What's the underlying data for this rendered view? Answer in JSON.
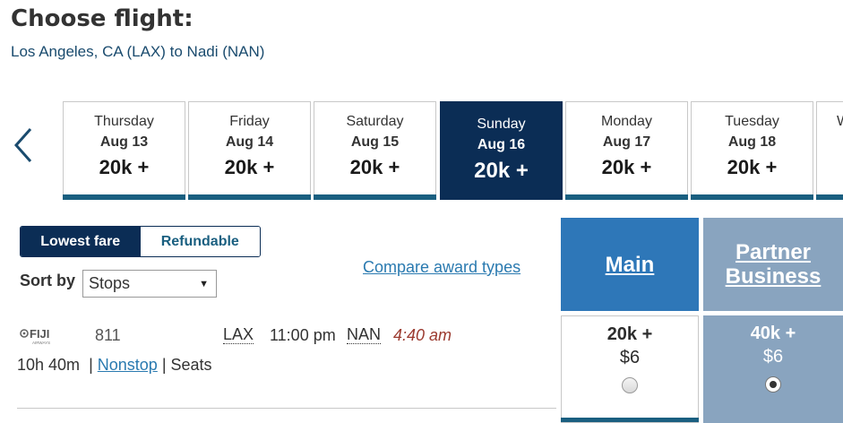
{
  "page": {
    "title": "Choose flight:",
    "route": "Los Angeles, CA (LAX) to Nadi (NAN)"
  },
  "date_strip": {
    "selected_index": 3,
    "days": [
      {
        "day": "Thursday",
        "date": "Aug 13",
        "price": "20k +"
      },
      {
        "day": "Friday",
        "date": "Aug 14",
        "price": "20k +"
      },
      {
        "day": "Saturday",
        "date": "Aug 15",
        "price": "20k +"
      },
      {
        "day": "Sunday",
        "date": "Aug 16",
        "price": "20k +"
      },
      {
        "day": "Monday",
        "date": "Aug 17",
        "price": "20k +"
      },
      {
        "day": "Tuesday",
        "date": "Aug 18",
        "price": "20k +"
      },
      {
        "day": "W",
        "date": "",
        "price": ""
      }
    ]
  },
  "fare_toggle": {
    "lowest_fare": "Lowest fare",
    "refundable": "Refundable",
    "active": "lowest_fare"
  },
  "sort": {
    "label": "Sort by",
    "selected": "Stops"
  },
  "compare_link": "Compare award types",
  "columns": {
    "main": "Main",
    "partner_line1": "Partner",
    "partner_line2": "Business"
  },
  "flight": {
    "airline_logo_text": "FIJI",
    "airline_logo_subtext": "AIRWAYS",
    "number": "811",
    "dep_code": "LAX",
    "dep_time": "11:00 pm",
    "arr_code": "NAN",
    "arr_time": "4:40 am",
    "duration": "10h 40m",
    "stops": "Nonstop",
    "seats": "Seats",
    "main_fare": {
      "points": "20k +",
      "fee": "$6",
      "selected": false
    },
    "partner_fare": {
      "points": "40k +",
      "fee": "$6",
      "selected": true
    }
  },
  "colors": {
    "navy": "#0b2d55",
    "teal_bar": "#1a5f80",
    "main_column": "#2e77b8",
    "partner_column": "#89a4bf",
    "link": "#2a7ab0",
    "arrival_time": "#9b3a2f"
  },
  "icons": {
    "prev": "chevron-left-icon",
    "sort_caret": "caret-down-icon",
    "airline": "fiji-airways-logo"
  }
}
